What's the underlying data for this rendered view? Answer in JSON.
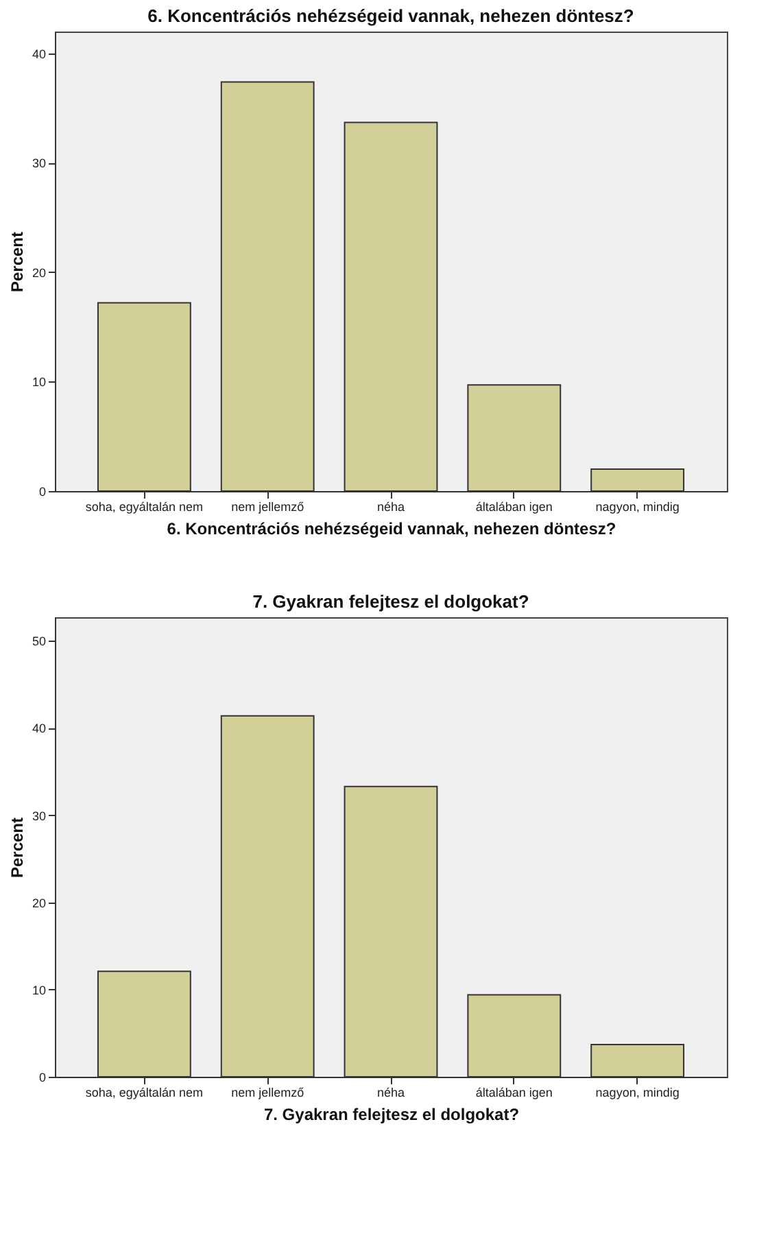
{
  "chart_data": [
    {
      "type": "bar",
      "title": "6. Koncentrációs nehézségeid vannak, nehezen döntesz?",
      "xlabel": "6. Koncentrációs nehézségeid vannak, nehezen döntesz?",
      "ylabel": "Percent",
      "categories": [
        "soha, egyáltalán nem",
        "nem jellemző",
        "néha",
        "általában igen",
        "nagyon, mindig"
      ],
      "values": [
        17.2,
        37.4,
        33.7,
        9.7,
        2.0
      ],
      "color": "#d3cf98",
      "ylim": [
        0,
        42
      ],
      "yticks": [
        0,
        10,
        20,
        30,
        40
      ],
      "grid": false
    },
    {
      "type": "bar",
      "title": "7. Gyakran felejtesz el dolgokat?",
      "xlabel": "7. Gyakran felejtesz el dolgokat?",
      "ylabel": "Percent",
      "categories": [
        "soha, egyáltalán nem",
        "nem jellemző",
        "néha",
        "általában igen",
        "nagyon, mindig"
      ],
      "values": [
        12.1,
        41.4,
        33.3,
        9.4,
        3.7
      ],
      "color": "#d3cf98",
      "ylim": [
        0,
        52.7
      ],
      "yticks": [
        0,
        10,
        20,
        30,
        40,
        50
      ],
      "grid": false
    }
  ]
}
